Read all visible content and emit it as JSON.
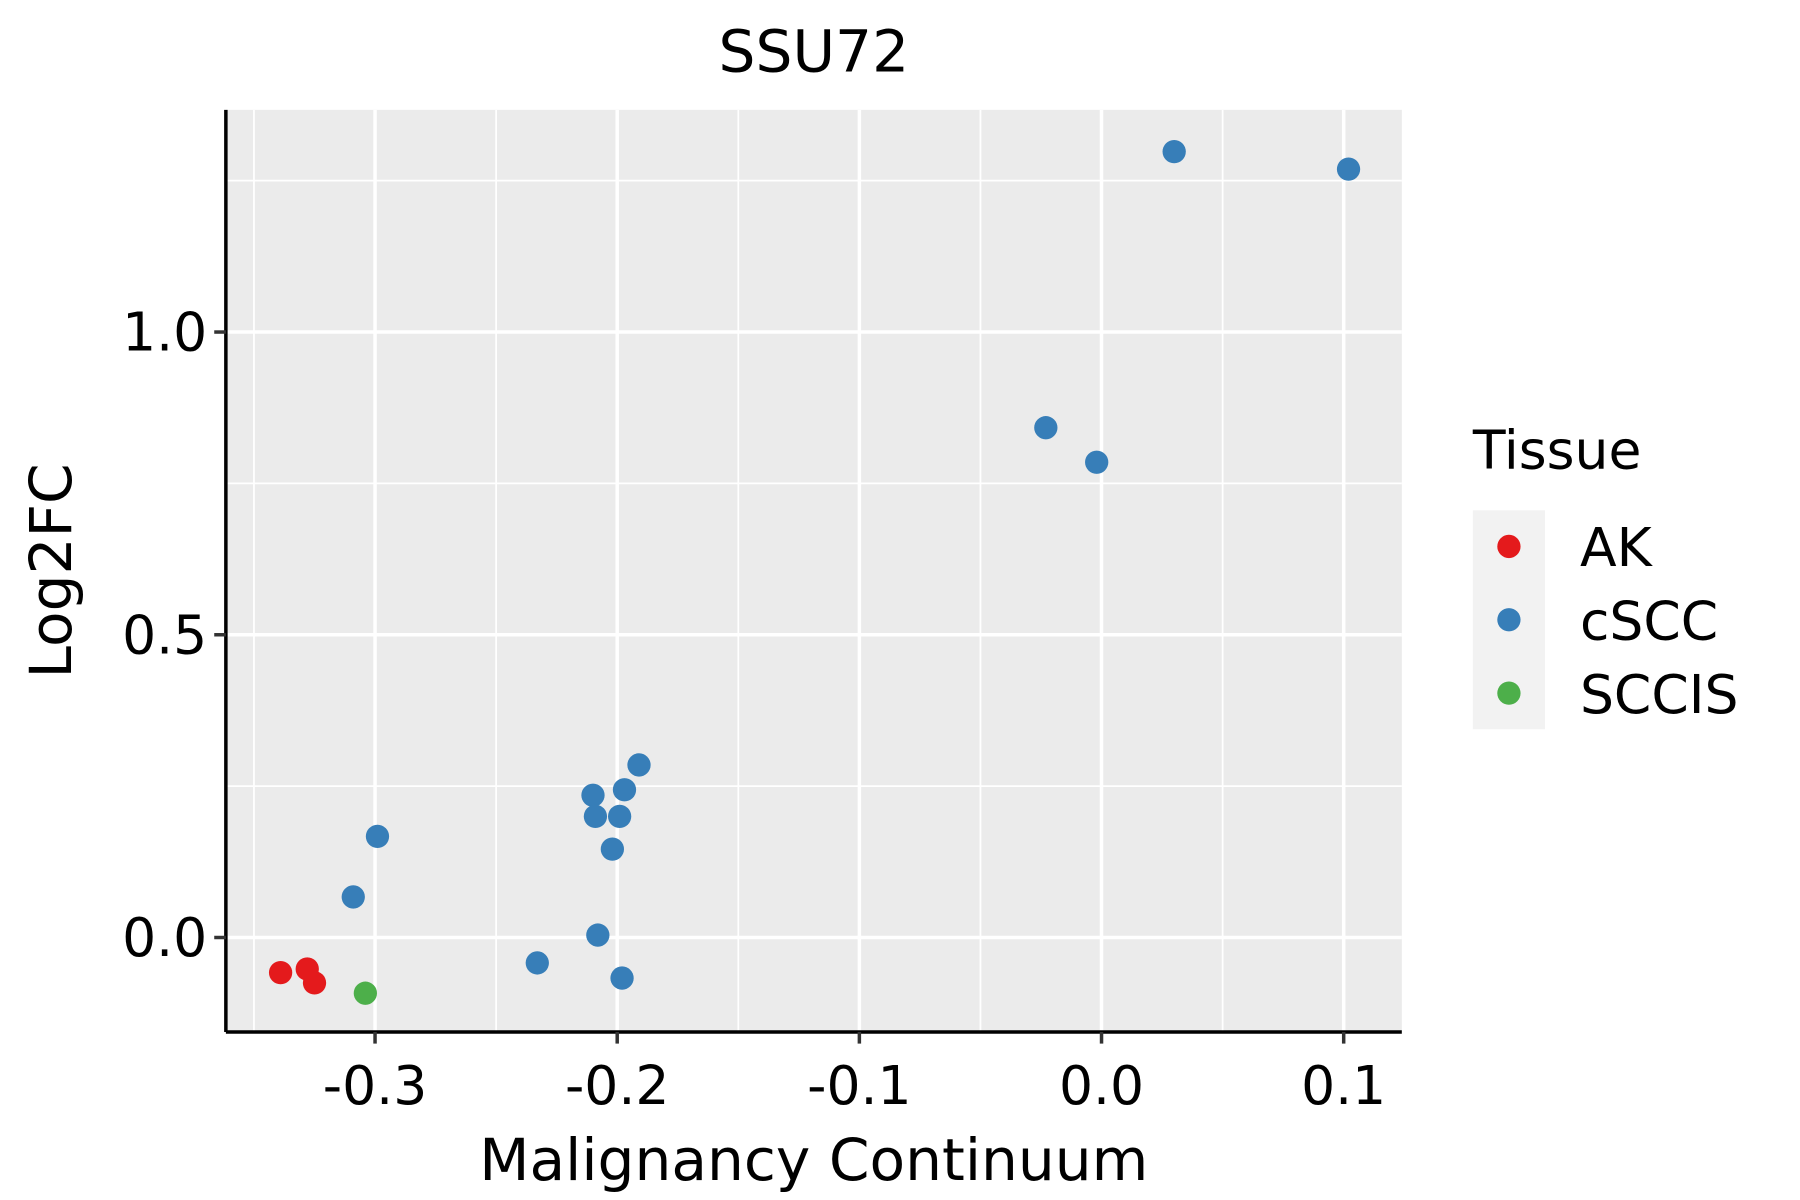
{
  "chart_data": {
    "type": "scatter",
    "title": "SSU72",
    "xlabel": "Malignancy Continuum",
    "ylabel": "Log2FC",
    "xlim": [
      -0.3616,
      0.124
    ],
    "ylim": [
      -0.156,
      1.367
    ],
    "xticks": [
      -0.3,
      -0.2,
      -0.1,
      0.0,
      0.1
    ],
    "xtick_labels": [
      "-0.3",
      "-0.2",
      "-0.1",
      "0.0",
      "0.1"
    ],
    "xminor": [
      -0.35,
      -0.25,
      -0.15,
      -0.05,
      0.05
    ],
    "yticks": [
      0.0,
      0.5,
      1.0
    ],
    "ytick_labels": [
      "0.0",
      "0.5",
      "1.0"
    ],
    "yminor": [
      0.25,
      0.75,
      1.25
    ],
    "grid": true,
    "legend": {
      "title": "Tissue",
      "placement": "right"
    },
    "series": [
      {
        "name": "AK",
        "color": "#E41A1C",
        "points": [
          [
            -0.339,
            -0.058
          ],
          [
            -0.328,
            -0.052
          ],
          [
            -0.325,
            -0.075
          ]
        ]
      },
      {
        "name": "cSCC",
        "color": "#377EB8",
        "points": [
          [
            0.03,
            1.298
          ],
          [
            0.102,
            1.269
          ],
          [
            -0.023,
            0.842
          ],
          [
            -0.002,
            0.785
          ],
          [
            -0.191,
            0.285
          ],
          [
            -0.197,
            0.244
          ],
          [
            -0.21,
            0.235
          ],
          [
            -0.209,
            0.2
          ],
          [
            -0.199,
            0.2
          ],
          [
            -0.202,
            0.146
          ],
          [
            -0.299,
            0.167
          ],
          [
            -0.309,
            0.067
          ],
          [
            -0.208,
            0.004
          ],
          [
            -0.233,
            -0.042
          ],
          [
            -0.198,
            -0.067
          ]
        ]
      },
      {
        "name": "SCCIS",
        "color": "#4DAF4A",
        "points": [
          [
            -0.304,
            -0.092
          ]
        ]
      }
    ]
  }
}
